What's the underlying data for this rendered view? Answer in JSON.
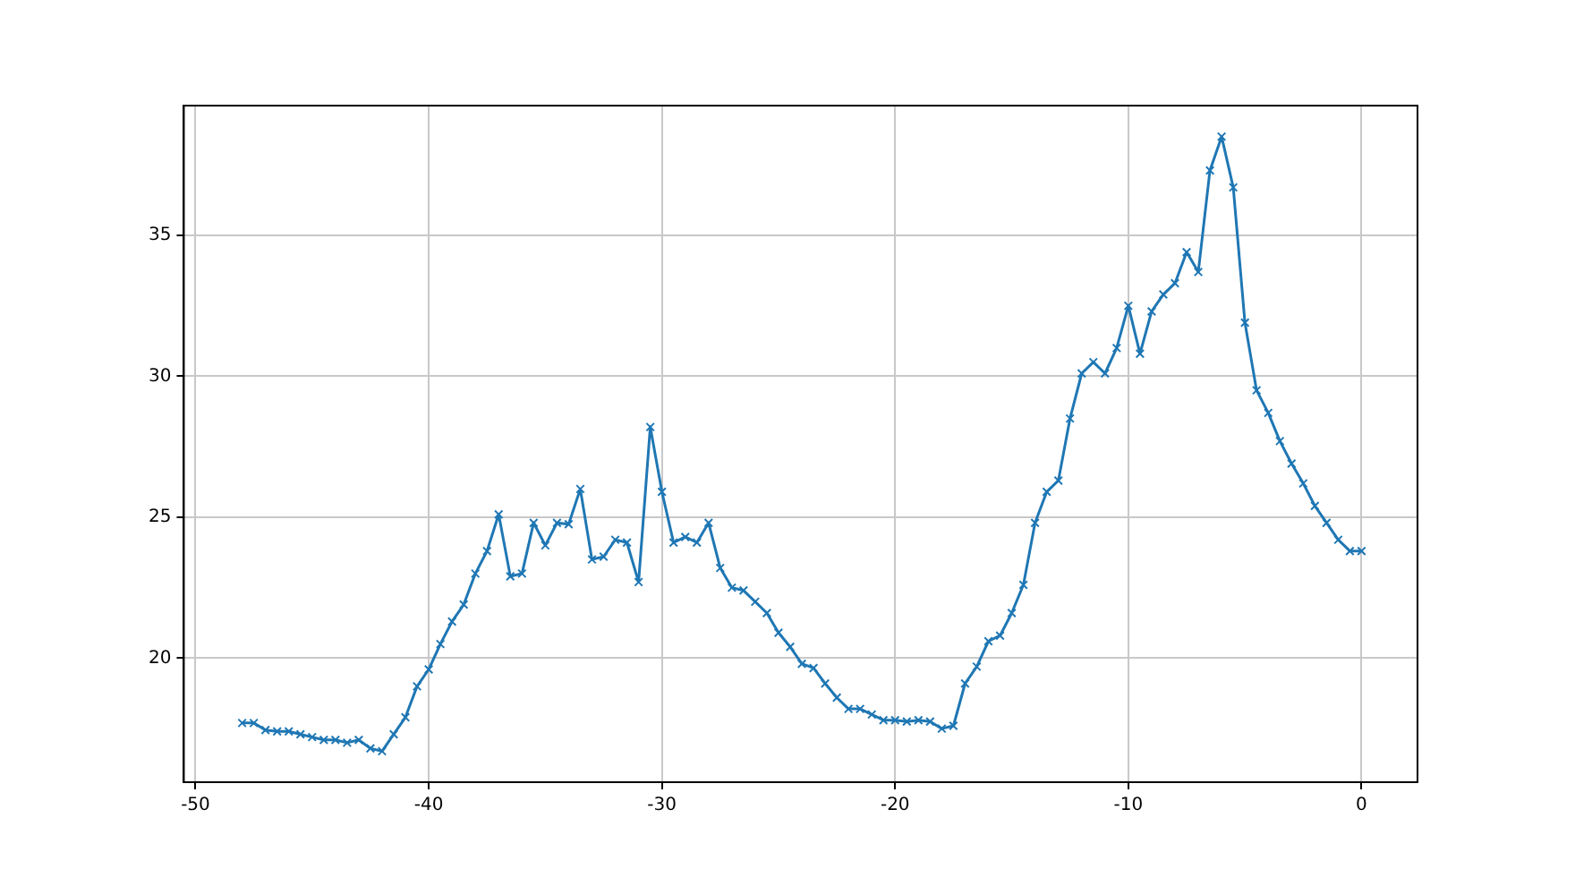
{
  "chart_data": {
    "type": "line",
    "x": [
      -48,
      -47.5,
      -47,
      -46.5,
      -46,
      -45.5,
      -45,
      -44.5,
      -44,
      -43.5,
      -43,
      -42.5,
      -42,
      -41.5,
      -41,
      -40.5,
      -40,
      -39.5,
      -39,
      -38.5,
      -38,
      -37.5,
      -37,
      -36.5,
      -36,
      -35.5,
      -35,
      -34.5,
      -34,
      -33.5,
      -33,
      -32.5,
      -32,
      -31.5,
      -31,
      -30.5,
      -30,
      -29.5,
      -29,
      -28.5,
      -28,
      -27.5,
      -27,
      -26.5,
      -26,
      -25.5,
      -25,
      -24.5,
      -24,
      -23.5,
      -23,
      -22.5,
      -22,
      -21.5,
      -21,
      -20.5,
      -20,
      -19.5,
      -19,
      -18.5,
      -18,
      -17.5,
      -17,
      -16.5,
      -16,
      -15.5,
      -15,
      -14.5,
      -14,
      -13.5,
      -13,
      -12.5,
      -12,
      -11.5,
      -11,
      -10.5,
      -10,
      -9.5,
      -9,
      -8.5,
      -8,
      -7.5,
      -7,
      -6.5,
      -6,
      -5.5,
      -5,
      -4.5,
      -4,
      -3.5,
      -3,
      -2.5,
      -2,
      -1.5,
      -1,
      -0.5,
      0
    ],
    "series": [
      {
        "color": "#1f77b4",
        "values": [
          17.7,
          17.7,
          17.45,
          17.4,
          17.4,
          17.3,
          17.2,
          17.1,
          17.1,
          17.0,
          17.1,
          16.8,
          16.7,
          17.3,
          17.9,
          19.0,
          19.6,
          20.5,
          21.3,
          21.9,
          23.0,
          23.8,
          25.1,
          22.9,
          23.0,
          24.8,
          24.0,
          24.8,
          24.75,
          26.0,
          23.5,
          23.6,
          24.2,
          24.1,
          22.7,
          28.2,
          25.9,
          24.1,
          24.3,
          24.1,
          24.8,
          23.2,
          22.5,
          22.4,
          22.0,
          21.6,
          20.9,
          20.4,
          19.8,
          19.65,
          19.1,
          18.6,
          18.2,
          18.2,
          18.0,
          17.8,
          17.8,
          17.75,
          17.8,
          17.75,
          17.5,
          17.6,
          19.1,
          19.7,
          20.6,
          20.8,
          21.6,
          22.6,
          24.8,
          25.9,
          26.3,
          28.5,
          30.1,
          30.5,
          30.1,
          31.0,
          32.5,
          30.8,
          32.3,
          32.9,
          33.3,
          34.4,
          33.7,
          37.3,
          38.5,
          36.7,
          31.9,
          29.5,
          28.7,
          27.7,
          26.9,
          26.2,
          25.4,
          24.8,
          24.2,
          23.8,
          23.8
        ]
      }
    ],
    "xlim": [
      -50.5,
      2.4
    ],
    "xticks": [
      -50,
      -40,
      -30,
      -20,
      -10,
      0
    ],
    "ylim": [
      15.6,
      39.6
    ],
    "yticks": [
      20,
      25,
      30,
      35
    ],
    "grid": true,
    "marker": "cross",
    "line_style": "solid"
  }
}
